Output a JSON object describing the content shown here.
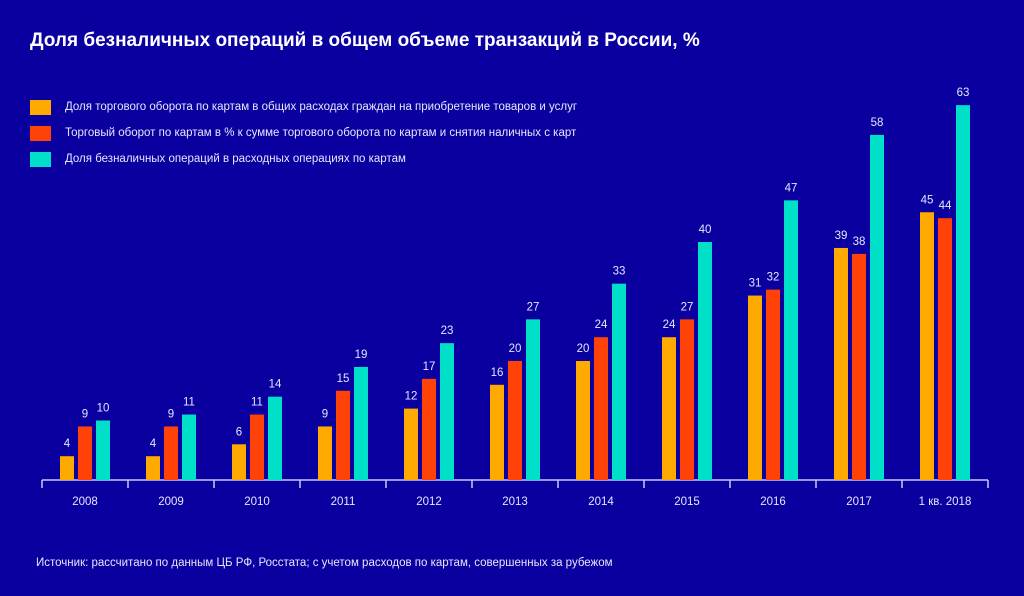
{
  "chart_data": {
    "type": "bar",
    "title": "Доля безналичных операций в общем объеме транзакций в России, %",
    "xlabel": "",
    "ylabel": "",
    "ylim": [
      0,
      63
    ],
    "grid": false,
    "legend_position": "top-left",
    "categories": [
      "2008",
      "2009",
      "2010",
      "2011",
      "2012",
      "2013",
      "2014",
      "2015",
      "2016",
      "2017",
      "1 кв. 2018"
    ],
    "series": [
      {
        "name": "Доля торгового оборота по картам в общих расходах граждан на приобретение товаров и услуг",
        "color": "#ffaa00",
        "values": [
          4,
          4,
          6,
          9,
          12,
          16,
          20,
          24,
          31,
          39,
          45
        ]
      },
      {
        "name": "Торговый оборот по картам в % к сумме торгового оборота по картам и снятия наличных с карт",
        "color": "#ff4208",
        "values": [
          9,
          9,
          11,
          15,
          17,
          20,
          24,
          27,
          32,
          38,
          44
        ]
      },
      {
        "name": "Доля безналичных операций в расходных операциях по картам",
        "color": "#00e0c8",
        "values": [
          10,
          11,
          14,
          19,
          23,
          27,
          33,
          40,
          47,
          58,
          63
        ]
      }
    ],
    "source": "Источник: рассчитано по данным ЦБ РФ, Росстата; с учетом расходов по картам, совершенных за рубежом"
  },
  "colors": {
    "background": "#0a00a0",
    "axis": "#c8c8ff"
  }
}
